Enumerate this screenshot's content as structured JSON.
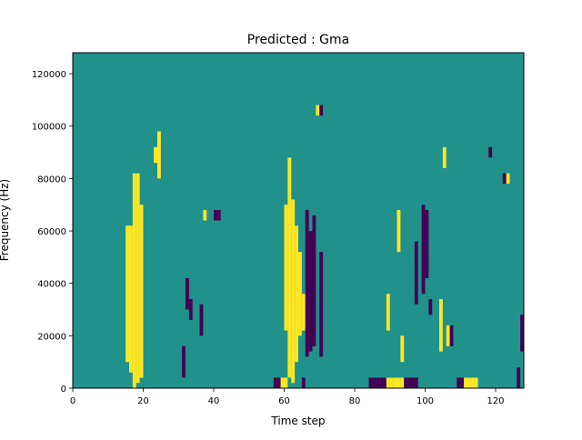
{
  "chart_data": {
    "type": "heatmap",
    "title": "Predicted : Gma",
    "xlabel": "Time step",
    "ylabel": "Frequency (Hz)",
    "xlim": [
      0,
      128
    ],
    "ylim": [
      0,
      128000
    ],
    "x_ticks": [
      0,
      20,
      40,
      60,
      80,
      100,
      120
    ],
    "y_ticks": [
      0,
      20000,
      40000,
      60000,
      80000,
      100000,
      120000
    ],
    "y_tick_labels": [
      "0",
      "20000",
      "40000",
      "60000",
      "80000",
      "100000",
      "120000"
    ],
    "grid": false,
    "colors": {
      "background": "#21918c",
      "high": "#fde725",
      "low": "#440154"
    },
    "background_value": 0,
    "cell_size": {
      "time_step": 1,
      "frequency_hz": 2000
    },
    "note_values": {
      "high": 1,
      "low": -1
    },
    "cells": [
      {
        "t": 17,
        "f_range": [
          0,
          82000
        ],
        "value": 1
      },
      {
        "t": 18,
        "f_range": [
          2000,
          82000
        ],
        "value": 1
      },
      {
        "t": 19,
        "f_range": [
          4000,
          70000
        ],
        "value": 1
      },
      {
        "t": 16,
        "f_range": [
          6000,
          62000
        ],
        "value": 1
      },
      {
        "t": 15,
        "f_range": [
          10000,
          62000
        ],
        "value": 1
      },
      {
        "t": 60,
        "f_range": [
          22000,
          70000
        ],
        "value": 1
      },
      {
        "t": 61,
        "f_range": [
          4000,
          88000
        ],
        "value": 1
      },
      {
        "t": 62,
        "f_range": [
          2000,
          72000
        ],
        "value": 1
      },
      {
        "t": 63,
        "f_range": [
          10000,
          62000
        ],
        "value": 1
      },
      {
        "t": 64,
        "f_range": [
          20000,
          52000
        ],
        "value": 1
      },
      {
        "t": 65,
        "f_range": [
          22000,
          36000
        ],
        "value": 1
      },
      {
        "t": 66,
        "f_range": [
          12000,
          68000
        ],
        "value": -1
      },
      {
        "t": 67,
        "f_range": [
          14000,
          60000
        ],
        "value": -1
      },
      {
        "t": 68,
        "f_range": [
          16000,
          66000
        ],
        "value": -1
      },
      {
        "t": 70,
        "f_range": [
          12000,
          52000
        ],
        "value": -1
      },
      {
        "t": 99,
        "f_range": [
          36000,
          70000
        ],
        "value": -1
      },
      {
        "t": 100,
        "f_range": [
          42000,
          68000
        ],
        "value": -1
      },
      {
        "t": 97,
        "f_range": [
          32000,
          56000
        ],
        "value": -1
      },
      {
        "t": 32,
        "f_range": [
          30000,
          42000
        ],
        "value": -1
      },
      {
        "t": 33,
        "f_range": [
          26000,
          34000
        ],
        "value": -1
      },
      {
        "t": 89,
        "f_range": [
          22000,
          36000
        ],
        "value": 1
      },
      {
        "t": 92,
        "f_range": [
          52000,
          68000
        ],
        "value": 1
      },
      {
        "t": 93,
        "f_range": [
          10000,
          20000
        ],
        "value": 1
      },
      {
        "t": 84,
        "f_range": [
          0,
          4000
        ],
        "value": -1
      },
      {
        "t": 85,
        "f_range": [
          0,
          4000
        ],
        "value": -1
      },
      {
        "t": 86,
        "f_range": [
          0,
          4000
        ],
        "value": -1
      },
      {
        "t": 87,
        "f_range": [
          0,
          4000
        ],
        "value": -1
      },
      {
        "t": 88,
        "f_range": [
          0,
          4000
        ],
        "value": -1
      },
      {
        "t": 89,
        "f_range": [
          0,
          4000
        ],
        "value": 1
      },
      {
        "t": 90,
        "f_range": [
          0,
          4000
        ],
        "value": 1
      },
      {
        "t": 91,
        "f_range": [
          0,
          4000
        ],
        "value": 1
      },
      {
        "t": 92,
        "f_range": [
          0,
          4000
        ],
        "value": 1
      },
      {
        "t": 93,
        "f_range": [
          0,
          4000
        ],
        "value": 1
      },
      {
        "t": 94,
        "f_range": [
          0,
          4000
        ],
        "value": -1
      },
      {
        "t": 95,
        "f_range": [
          0,
          4000
        ],
        "value": -1
      },
      {
        "t": 96,
        "f_range": [
          0,
          4000
        ],
        "value": -1
      },
      {
        "t": 97,
        "f_range": [
          0,
          4000
        ],
        "value": -1
      },
      {
        "t": 109,
        "f_range": [
          0,
          4000
        ],
        "value": -1
      },
      {
        "t": 110,
        "f_range": [
          0,
          4000
        ],
        "value": -1
      },
      {
        "t": 111,
        "f_range": [
          0,
          4000
        ],
        "value": 1
      },
      {
        "t": 112,
        "f_range": [
          0,
          4000
        ],
        "value": 1
      },
      {
        "t": 113,
        "f_range": [
          0,
          4000
        ],
        "value": 1
      },
      {
        "t": 114,
        "f_range": [
          0,
          4000
        ],
        "value": 1
      },
      {
        "t": 126,
        "f_range": [
          0,
          8000
        ],
        "value": -1
      },
      {
        "t": 57,
        "f_range": [
          0,
          4000
        ],
        "value": -1
      },
      {
        "t": 58,
        "f_range": [
          0,
          4000
        ],
        "value": -1
      },
      {
        "t": 59,
        "f_range": [
          0,
          4000
        ],
        "value": 1
      },
      {
        "t": 60,
        "f_range": [
          0,
          4000
        ],
        "value": 1
      },
      {
        "t": 65,
        "f_range": [
          0,
          4000
        ],
        "value": -1
      },
      {
        "t": 24,
        "f_range": [
          80000,
          98000
        ],
        "value": 1
      },
      {
        "t": 23,
        "f_range": [
          86000,
          92000
        ],
        "value": 1
      },
      {
        "t": 31,
        "f_range": [
          4000,
          16000
        ],
        "value": -1
      },
      {
        "t": 36,
        "f_range": [
          20000,
          32000
        ],
        "value": -1
      },
      {
        "t": 40,
        "f_range": [
          64000,
          68000
        ],
        "value": -1
      },
      {
        "t": 41,
        "f_range": [
          64000,
          68000
        ],
        "value": -1
      },
      {
        "t": 37,
        "f_range": [
          64000,
          68000
        ],
        "value": 1
      },
      {
        "t": 118,
        "f_range": [
          88000,
          92000
        ],
        "value": -1
      },
      {
        "t": 123,
        "f_range": [
          78000,
          82000
        ],
        "value": 1
      },
      {
        "t": 122,
        "f_range": [
          78000,
          82000
        ],
        "value": -1
      },
      {
        "t": 127,
        "f_range": [
          14000,
          28000
        ],
        "value": -1
      },
      {
        "t": 69,
        "f_range": [
          104000,
          108000
        ],
        "value": 1
      },
      {
        "t": 70,
        "f_range": [
          104000,
          108000
        ],
        "value": -1
      },
      {
        "t": 105,
        "f_range": [
          84000,
          92000
        ],
        "value": 1
      },
      {
        "t": 101,
        "f_range": [
          28000,
          34000
        ],
        "value": -1
      },
      {
        "t": 104,
        "f_range": [
          14000,
          34000
        ],
        "value": 1
      },
      {
        "t": 106,
        "f_range": [
          16000,
          24000
        ],
        "value": 1
      },
      {
        "t": 107,
        "f_range": [
          16000,
          24000
        ],
        "value": -1
      }
    ]
  }
}
